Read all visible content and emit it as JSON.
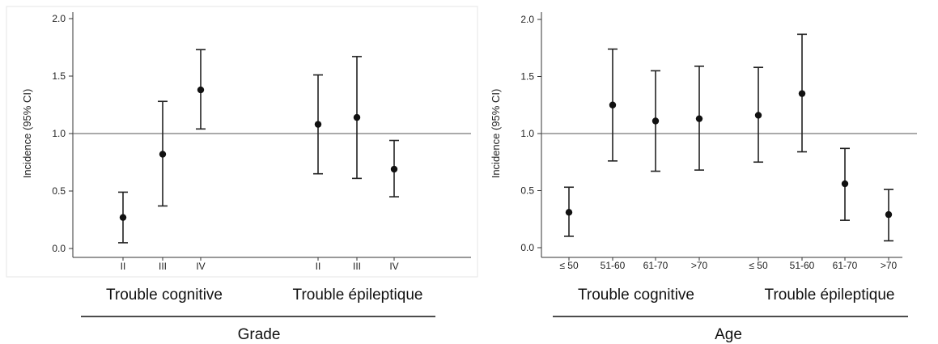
{
  "chart_data": [
    {
      "type": "scatter",
      "ylabel": "Incidence (95% CI)",
      "ylim": [
        0,
        2.0
      ],
      "yticks": [
        "0.0",
        "0.5",
        "1.0",
        "1.5",
        "2.0"
      ],
      "reference_line": 1.0,
      "caption": "Grade",
      "groups": [
        {
          "label": "Trouble cognitive",
          "points": [
            {
              "category": "II",
              "value": 0.27,
              "lower": 0.05,
              "upper": 0.49
            },
            {
              "category": "III",
              "value": 0.82,
              "lower": 0.37,
              "upper": 1.28
            },
            {
              "category": "IV",
              "value": 1.38,
              "lower": 1.04,
              "upper": 1.73
            }
          ]
        },
        {
          "label": "Trouble épileptique",
          "points": [
            {
              "category": "II",
              "value": 1.08,
              "lower": 0.65,
              "upper": 1.51
            },
            {
              "category": "III",
              "value": 1.14,
              "lower": 0.61,
              "upper": 1.67
            },
            {
              "category": "IV",
              "value": 0.69,
              "lower": 0.45,
              "upper": 0.94
            }
          ]
        }
      ]
    },
    {
      "type": "scatter",
      "ylabel": "Incidence (95% CI)",
      "ylim": [
        0,
        2.0
      ],
      "yticks": [
        "0.0",
        "0.5",
        "1.0",
        "1.5",
        "2.0"
      ],
      "reference_line": 1.0,
      "caption": "Age",
      "groups": [
        {
          "label": "Trouble cognitive",
          "points": [
            {
              "category": "≤ 50",
              "value": 0.31,
              "lower": 0.1,
              "upper": 0.53
            },
            {
              "category": "51-60",
              "value": 1.25,
              "lower": 0.76,
              "upper": 1.74
            },
            {
              "category": "61-70",
              "value": 1.11,
              "lower": 0.67,
              "upper": 1.55
            },
            {
              "category": ">70",
              "value": 1.13,
              "lower": 0.68,
              "upper": 1.59
            }
          ]
        },
        {
          "label": "Trouble épileptique",
          "points": [
            {
              "category": "≤ 50",
              "value": 1.16,
              "lower": 0.75,
              "upper": 1.58
            },
            {
              "category": "51-60",
              "value": 1.35,
              "lower": 0.84,
              "upper": 1.87
            },
            {
              "category": "61-70",
              "value": 0.56,
              "lower": 0.24,
              "upper": 0.87
            },
            {
              "category": ">70",
              "value": 0.29,
              "lower": 0.06,
              "upper": 0.51
            }
          ]
        }
      ]
    }
  ]
}
